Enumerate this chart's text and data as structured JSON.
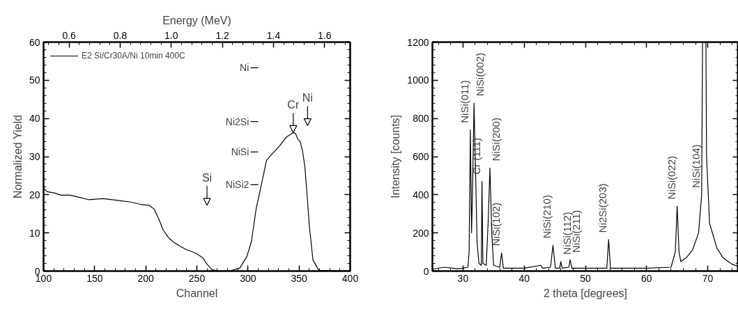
{
  "chart_data": [
    {
      "type": "line",
      "xlabel": "Channel",
      "ylabel": "Normalized Yield",
      "x2label": "Energy (MeV)",
      "xlim": [
        100,
        400
      ],
      "xticks": [
        100,
        150,
        200,
        250,
        300,
        350,
        400
      ],
      "ylim": [
        0,
        60
      ],
      "yticks": [
        0,
        10,
        20,
        30,
        40,
        50,
        60
      ],
      "x2lim": [
        0.5,
        1.7
      ],
      "x2ticks": [
        0.6,
        0.8,
        {
          "value": 1.0,
          "label": "1.0"
        },
        1.2,
        1.4,
        1.6
      ],
      "grid": false,
      "legend": "top left",
      "marker": "none",
      "line_style": "solid",
      "series": [
        {
          "name": "E2 Si/Cr30A/Ni 10min 400C",
          "color": "#000000",
          "x": [
            100,
            103.4,
            110.2,
            117,
            126.1,
            135.2,
            144.3,
            158,
            167,
            176.1,
            185.2,
            194.3,
            203.4,
            208,
            212.5,
            217,
            221.6,
            226.1,
            233,
            239.8,
            248.9,
            255.7,
            260.2,
            264.8,
            271.6,
            283,
            292,
            298.9,
            303.4,
            308,
            311.4,
            314.8,
            318.2,
            323.9,
            330.7,
            337.5,
            344.3,
            346.6,
            348.9,
            351.1,
            353.4,
            355.7,
            358,
            360.2,
            363.6,
            369.3,
            400
          ],
          "values": [
            21.7,
            20.8,
            20.5,
            19.9,
            19.9,
            19.3,
            18.7,
            19.0,
            18.7,
            18.4,
            18.1,
            17.5,
            17.2,
            16.3,
            13.8,
            10.8,
            9.0,
            7.8,
            6.6,
            5.6,
            4.7,
            3.5,
            1.7,
            0.4,
            0,
            0.1,
            0.8,
            3.8,
            7.8,
            16.3,
            20.5,
            24.8,
            29.0,
            30.8,
            32.7,
            35.1,
            36.3,
            36.0,
            34.5,
            33.9,
            31.5,
            27.2,
            19.3,
            11.4,
            2.9,
            0.2,
            0
          ]
        }
      ],
      "annotations": [
        "Ni",
        "Ni2Si",
        "NiSi",
        "NiSi2",
        "Si",
        {
          "text": "Cr",
          "x": 344.3,
          "y": 36.3
        },
        "Ni"
      ]
    },
    {
      "type": "line",
      "xlabel": "2 theta [degrees]",
      "ylabel": "Intensity [counts]",
      "xlim": [
        25,
        75
      ],
      "xticks": [
        30,
        40,
        50,
        60,
        70
      ],
      "ylim": [
        0,
        1200
      ],
      "yticks": [
        0,
        200,
        400,
        600,
        800,
        1000,
        1200
      ],
      "grid": false,
      "legend": false,
      "marker": "none",
      "line_style": "solid",
      "series": [
        {
          "color": "#000000",
          "x": [
            25,
            27,
            29,
            30,
            30.8,
            31.0,
            31.2,
            31.4,
            31.6,
            31.8,
            32.0,
            32.3,
            32.6,
            33.0,
            33.1,
            33.25,
            33.8,
            34.1,
            34.4,
            34.7,
            35.0,
            36.0,
            36.3,
            36.6,
            40,
            42.7,
            43,
            44.3,
            44.7,
            45.1,
            45.8,
            46.0,
            46.2,
            47.3,
            47.5,
            47.8,
            53.5,
            53.8,
            54.1,
            60,
            64,
            64.7,
            65.0,
            65.3,
            65.6,
            66.5,
            67.5,
            68.5,
            69.0,
            69.15,
            69.7,
            69.8,
            70.3,
            71.5,
            72.5,
            74,
            75
          ],
          "values": [
            10,
            20,
            12,
            15,
            20,
            100,
            740,
            200,
            500,
            880,
            600,
            150,
            40,
            30,
            470,
            40,
            30,
            250,
            540,
            200,
            30,
            20,
            95,
            15,
            15,
            30,
            15,
            20,
            135,
            15,
            15,
            50,
            15,
            20,
            60,
            15,
            15,
            165,
            15,
            15,
            20,
            100,
            340,
            100,
            50,
            70,
            110,
            200,
            400,
            1200,
            1200,
            600,
            250,
            120,
            70,
            35,
            25
          ]
        }
      ],
      "annotations": [
        {
          "text": "NiSi(011)",
          "x": 31.2,
          "y": 740
        },
        {
          "text": "NiSi(002)",
          "x": 31.8,
          "y": 880
        },
        {
          "text": "Cr (111)",
          "x": 33.1,
          "y": 470
        },
        {
          "text": "NiSi(200)",
          "x": 34.4,
          "y": 540
        },
        {
          "text": "NiSi(102)",
          "x": 36.3,
          "y": 95
        },
        {
          "text": "NiSi(210)",
          "x": 44.7,
          "y": 135
        },
        {
          "text": "NiSi(112)",
          "x": 46.0,
          "y": 50
        },
        {
          "text": "NiSi(211)",
          "x": 47.5,
          "y": 60
        },
        {
          "text": "Ni2Si(203)",
          "x": 53.8,
          "y": 165
        },
        {
          "text": "NiSi(022)",
          "x": 65.0,
          "y": 340
        },
        {
          "text": "NiSi(104)",
          "x": 69.0,
          "y": 400
        }
      ]
    }
  ]
}
